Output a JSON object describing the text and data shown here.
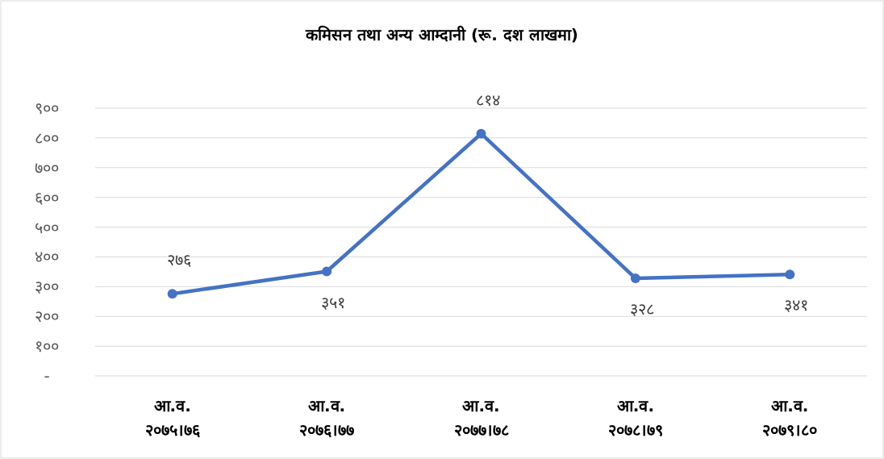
{
  "chart_data": {
    "type": "line",
    "title": "कमिसन तथा अन्य आम्दानी (रू. दश लाखमा)",
    "categories": [
      "आ.व. २०७५।७६",
      "आ.व. २०७६।७७",
      "आ.व. २०७७।७८",
      "आ.व. २०७८।७९",
      "आ.व. २०७९।८०"
    ],
    "series": [
      {
        "color": "#4472c4",
        "values": [
          276,
          351,
          814,
          328,
          341
        ],
        "value_labels": [
          "२७६",
          "३५१",
          "८१४",
          "३२८",
          "३४१"
        ]
      }
    ],
    "ylim": [
      0,
      900
    ],
    "yticks": [
      {
        "value": 0,
        "label": "-"
      },
      {
        "value": 100,
        "label": "१००"
      },
      {
        "value": 200,
        "label": "२००"
      },
      {
        "value": 300,
        "label": "३००"
      },
      {
        "value": 400,
        "label": "४००"
      },
      {
        "value": 500,
        "label": "५००"
      },
      {
        "value": 600,
        "label": "६००"
      },
      {
        "value": 700,
        "label": "७००"
      },
      {
        "value": 800,
        "label": "८००"
      },
      {
        "value": 900,
        "label": "९००"
      }
    ],
    "grid": "y",
    "marker": "circle",
    "line_style": "solid"
  }
}
